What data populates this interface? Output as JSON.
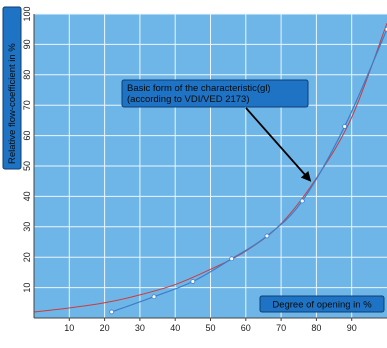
{
  "chart_data": {
    "type": "line",
    "title": "",
    "xlabel": "Degree of opening in %",
    "ylabel": "Relative flow-coefficient in %",
    "xlim": [
      0,
      100
    ],
    "ylim": [
      0,
      100
    ],
    "x_ticks": [
      10,
      20,
      30,
      40,
      50,
      60,
      70,
      80,
      90
    ],
    "y_ticks": [
      10,
      20,
      30,
      40,
      50,
      60,
      70,
      80,
      90,
      100
    ],
    "grid": true,
    "annotation": {
      "line1": "Basic form of  the characteristic(gl)",
      "line2": "(according to VDI/VED 2173)",
      "arrow_target": [
        79,
        44
      ]
    },
    "series": [
      {
        "kind": "measured",
        "x": [
          22,
          34,
          45,
          56,
          66,
          76,
          88,
          100
        ],
        "y": [
          2,
          7,
          12,
          19.5,
          27,
          38.5,
          63,
          95
        ],
        "color": "#3d7dc8"
      },
      {
        "kind": "characteristic",
        "x": [
          0,
          10,
          20,
          30,
          40,
          50,
          60,
          70,
          80,
          90,
          100
        ],
        "y": [
          2,
          3.3,
          5,
          7.6,
          11,
          16,
          22,
          31,
          46,
          66,
          97
        ],
        "color": "#cc3b3b"
      }
    ],
    "colors": {
      "plot_background": "#6fb6e8",
      "grid": "#eaf6ff",
      "label_box": "#1e73c4",
      "label_border": "#0d3d73"
    }
  }
}
